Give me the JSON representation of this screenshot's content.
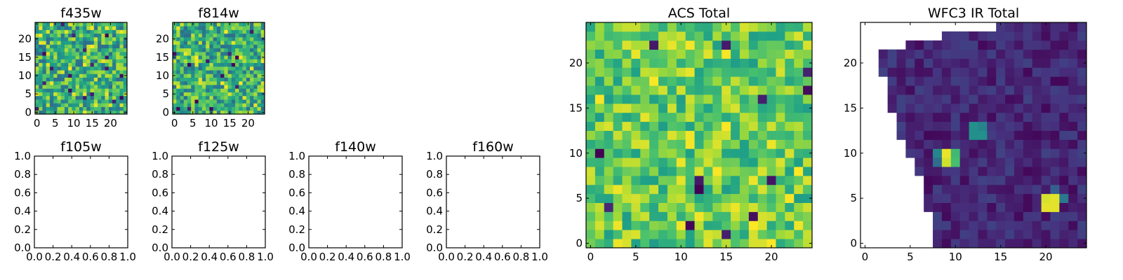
{
  "figure": {
    "background": "#ffffff"
  },
  "colormap": {
    "name": "viridis",
    "stops": [
      "#440154",
      "#46327e",
      "#365c8d",
      "#277f8e",
      "#1fa187",
      "#4ac16d",
      "#a0da39",
      "#fde725"
    ]
  },
  "chart_data": [
    {
      "id": "f435w",
      "type": "heatmap",
      "title": "f435w",
      "grid_size": 25,
      "x_ticks": [
        "0",
        "5",
        "10",
        "15",
        "20"
      ],
      "y_ticks": [
        "0",
        "5",
        "10",
        "15",
        "20"
      ],
      "value_range": [
        0,
        1
      ],
      "typical_range": [
        0.35,
        0.9
      ],
      "pattern": "uniform_noise"
    },
    {
      "id": "f814w",
      "type": "heatmap",
      "title": "f814w",
      "grid_size": 25,
      "x_ticks": [
        "0",
        "5",
        "10",
        "15",
        "20"
      ],
      "y_ticks": [
        "0",
        "5",
        "10",
        "15",
        "20"
      ],
      "value_range": [
        0,
        1
      ],
      "typical_range": [
        0.35,
        0.9
      ],
      "pattern": "uniform_noise"
    },
    {
      "id": "acs-total",
      "type": "heatmap",
      "title": "ACS Total",
      "grid_size": 25,
      "x_ticks": [
        "0",
        "5",
        "10",
        "15",
        "20"
      ],
      "y_ticks": [
        "0",
        "5",
        "10",
        "15",
        "20"
      ],
      "value_range": [
        0,
        1
      ],
      "typical_range": [
        0.55,
        0.95
      ],
      "pattern": "uniform_noise"
    },
    {
      "id": "wfc3-ir-total",
      "type": "heatmap",
      "title": "WFC3 IR Total",
      "grid_size": 25,
      "x_ticks": [
        "0",
        "5",
        "10",
        "15",
        "20"
      ],
      "y_ticks": [
        "0",
        "5",
        "10",
        "15",
        "20"
      ],
      "value_range": [
        0,
        1
      ],
      "typical_range": [
        0.02,
        0.2
      ],
      "pattern": "masked_region",
      "mask_boundary": {
        "x_min_by_row": [
          8,
          8,
          8,
          8,
          7,
          7,
          7,
          7,
          6,
          6,
          5,
          5,
          4,
          4,
          4,
          3,
          3,
          3,
          3,
          2,
          2,
          2,
          5,
          9,
          15
        ],
        "x_max_by_row": [
          24,
          24,
          24,
          24,
          24,
          24,
          24,
          24,
          24,
          24,
          24,
          24,
          24,
          24,
          24,
          24,
          24,
          24,
          24,
          24,
          24,
          24,
          24,
          24,
          24
        ]
      },
      "bright_spots": [
        {
          "x": 20,
          "y": 4,
          "value": 0.96
        },
        {
          "x": 21,
          "y": 4,
          "value": 0.96
        },
        {
          "x": 20,
          "y": 5,
          "value": 0.94
        },
        {
          "x": 21,
          "y": 5,
          "value": 0.96
        },
        {
          "x": 22,
          "y": 5,
          "value": 0.4
        },
        {
          "x": 21,
          "y": 6,
          "value": 0.3
        },
        {
          "x": 9,
          "y": 10,
          "value": 0.97
        },
        {
          "x": 9,
          "y": 9,
          "value": 0.93
        },
        {
          "x": 10,
          "y": 10,
          "value": 0.68
        },
        {
          "x": 10,
          "y": 9,
          "value": 0.7
        },
        {
          "x": 8,
          "y": 10,
          "value": 0.45
        },
        {
          "x": 8,
          "y": 9,
          "value": 0.35
        },
        {
          "x": 12,
          "y": 12,
          "value": 0.5
        },
        {
          "x": 13,
          "y": 12,
          "value": 0.5
        },
        {
          "x": 12,
          "y": 13,
          "value": 0.5
        },
        {
          "x": 13,
          "y": 13,
          "value": 0.45
        }
      ]
    },
    {
      "id": "f105w",
      "type": "empty",
      "title": "f105w",
      "xlim": [
        0,
        1
      ],
      "ylim": [
        0,
        1
      ],
      "x_ticks": [
        "0.0",
        "0.2",
        "0.4",
        "0.6",
        "0.8",
        "1.0"
      ],
      "y_ticks": [
        "0.0",
        "0.2",
        "0.4",
        "0.6",
        "0.8",
        "1.0"
      ]
    },
    {
      "id": "f125w",
      "type": "empty",
      "title": "f125w",
      "xlim": [
        0,
        1
      ],
      "ylim": [
        0,
        1
      ],
      "x_ticks": [
        "0.0",
        "0.2",
        "0.4",
        "0.6",
        "0.8",
        "1.0"
      ],
      "y_ticks": [
        "0.0",
        "0.2",
        "0.4",
        "0.6",
        "0.8",
        "1.0"
      ]
    },
    {
      "id": "f140w",
      "type": "empty",
      "title": "f140w",
      "xlim": [
        0,
        1
      ],
      "ylim": [
        0,
        1
      ],
      "x_ticks": [
        "0.0",
        "0.2",
        "0.4",
        "0.6",
        "0.8",
        "1.0"
      ],
      "y_ticks": [
        "0.0",
        "0.2",
        "0.4",
        "0.6",
        "0.8",
        "1.0"
      ]
    },
    {
      "id": "f160w",
      "type": "empty",
      "title": "f160w",
      "xlim": [
        0,
        1
      ],
      "ylim": [
        0,
        1
      ],
      "x_ticks": [
        "0.0",
        "0.2",
        "0.4",
        "0.6",
        "0.8",
        "1.0"
      ],
      "y_ticks": [
        "0.0",
        "0.2",
        "0.4",
        "0.6",
        "0.8",
        "1.0"
      ]
    }
  ]
}
